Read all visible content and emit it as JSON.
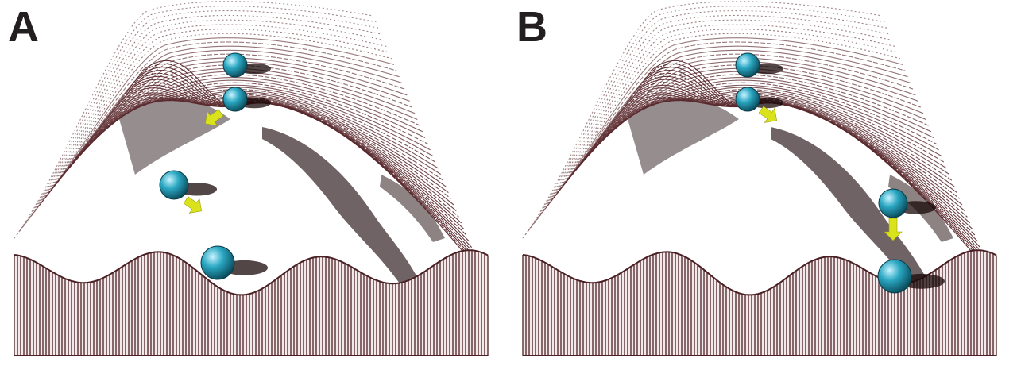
{
  "figure": {
    "panels": [
      {
        "label": "A",
        "balls": 4,
        "arrows": 2
      },
      {
        "label": "B",
        "balls": 4,
        "arrows": 2
      }
    ],
    "colors": {
      "surface_line": "#5a2a2e",
      "surface_shadow": "#1e0a0c",
      "wall_line": "#4a2024",
      "ball": "#2aa7c2",
      "ball_highlight": "#c9f3ff",
      "arrow": "#d9e21b",
      "label": "#231f20"
    },
    "icons": [
      "sphere-icon",
      "arrow-icon"
    ]
  }
}
